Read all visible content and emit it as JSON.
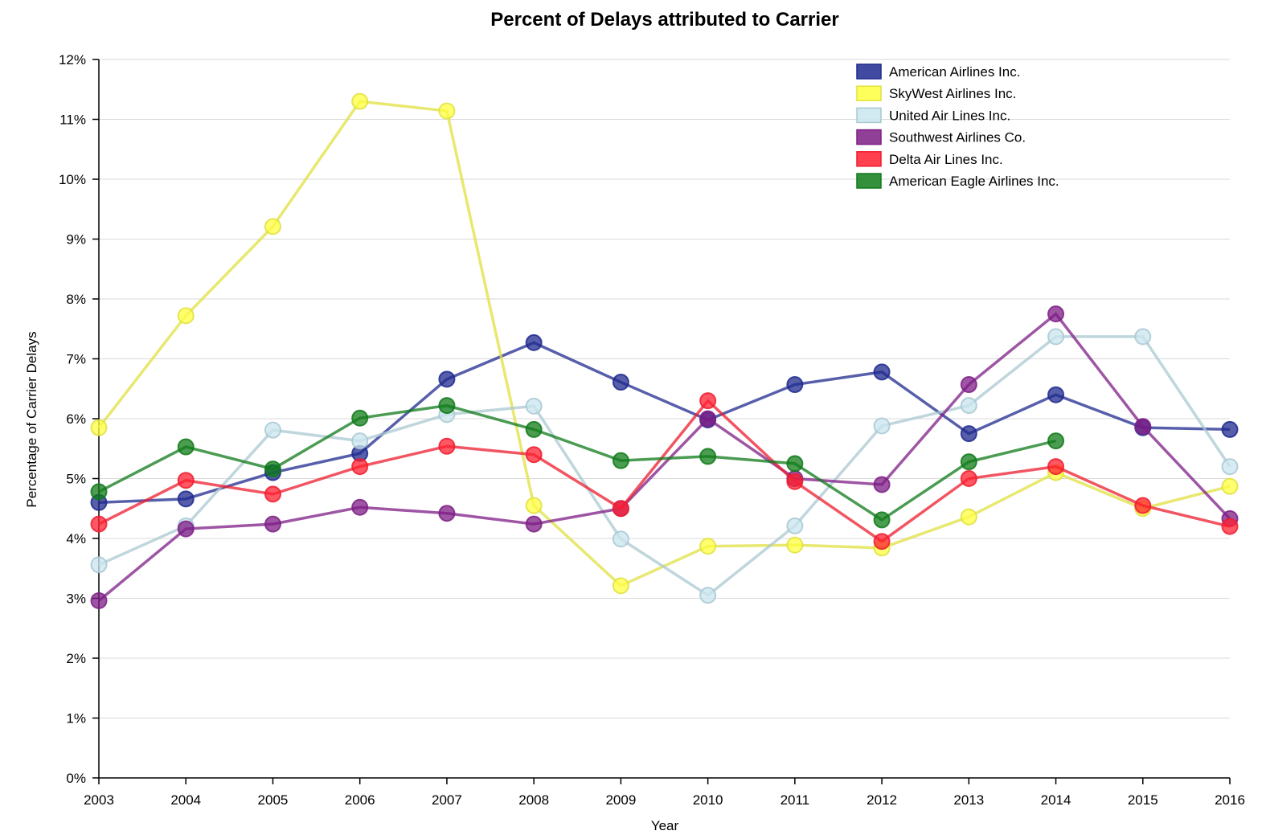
{
  "chart_data": {
    "type": "line",
    "title": "Percent of Delays attributed to Carrier",
    "xlabel": "Year",
    "ylabel": "Percentage of Carrier Delays",
    "ylim": [
      0,
      12
    ],
    "y_ticks": [
      0,
      1,
      2,
      3,
      4,
      5,
      6,
      7,
      8,
      9,
      10,
      11,
      12
    ],
    "y_tick_labels": [
      "0%",
      "1%",
      "2%",
      "3%",
      "4%",
      "5%",
      "6%",
      "7%",
      "8%",
      "9%",
      "10%",
      "11%",
      "12%"
    ],
    "x": [
      2003,
      2004,
      2005,
      2006,
      2007,
      2008,
      2009,
      2010,
      2011,
      2012,
      2013,
      2014,
      2015,
      2016
    ],
    "x_tick_labels": [
      "2003",
      "2004",
      "2005",
      "2006",
      "2007",
      "2008",
      "2009",
      "2010",
      "2011",
      "2012",
      "2013",
      "2014",
      "2015",
      "2016"
    ],
    "grid": true,
    "legend_position": "top-right",
    "series": [
      {
        "name": "American Airlines Inc.",
        "color": "#1f2a8f",
        "point_fill": "#1f2a8f",
        "values": [
          4.6,
          4.66,
          5.1,
          5.42,
          6.66,
          7.27,
          6.61,
          5.98,
          6.57,
          6.78,
          5.75,
          6.4,
          5.85,
          5.82
        ]
      },
      {
        "name": "SkyWest Airlines Inc.",
        "color": "#e0e040",
        "point_fill": "#ffff40",
        "values": [
          5.85,
          7.72,
          9.21,
          11.3,
          11.14,
          4.55,
          3.21,
          3.87,
          3.89,
          3.84,
          4.36,
          5.1,
          4.5,
          4.87
        ]
      },
      {
        "name": "United Air Lines Inc.",
        "color": "#a9c8d2",
        "point_fill": "#c9e6ee",
        "values": [
          3.56,
          4.21,
          5.81,
          5.63,
          6.07,
          6.21,
          3.99,
          3.05,
          4.21,
          5.88,
          6.22,
          7.37,
          7.37,
          5.2
        ]
      },
      {
        "name": "Southwest Airlines Co.",
        "color": "#7e1e86",
        "point_fill": "#7e1e86",
        "values": [
          2.96,
          4.16,
          4.24,
          4.52,
          4.42,
          4.24,
          4.5,
          6.0,
          5.0,
          4.9,
          6.57,
          7.75,
          5.87,
          4.33
        ]
      },
      {
        "name": "Delta Air Lines Inc.",
        "color": "#ee1c2e",
        "point_fill": "#ff2030",
        "values": [
          4.24,
          4.97,
          4.74,
          5.2,
          5.54,
          5.4,
          4.5,
          6.3,
          4.95,
          3.95,
          5.0,
          5.2,
          4.55,
          4.2
        ]
      },
      {
        "name": "American Eagle Airlines Inc.",
        "color": "#0f7a1a",
        "point_fill": "#107c18",
        "values": [
          4.78,
          5.53,
          5.16,
          6.01,
          6.22,
          5.82,
          5.3,
          5.37,
          5.25,
          4.31,
          5.28,
          5.63,
          null,
          null
        ]
      }
    ]
  }
}
